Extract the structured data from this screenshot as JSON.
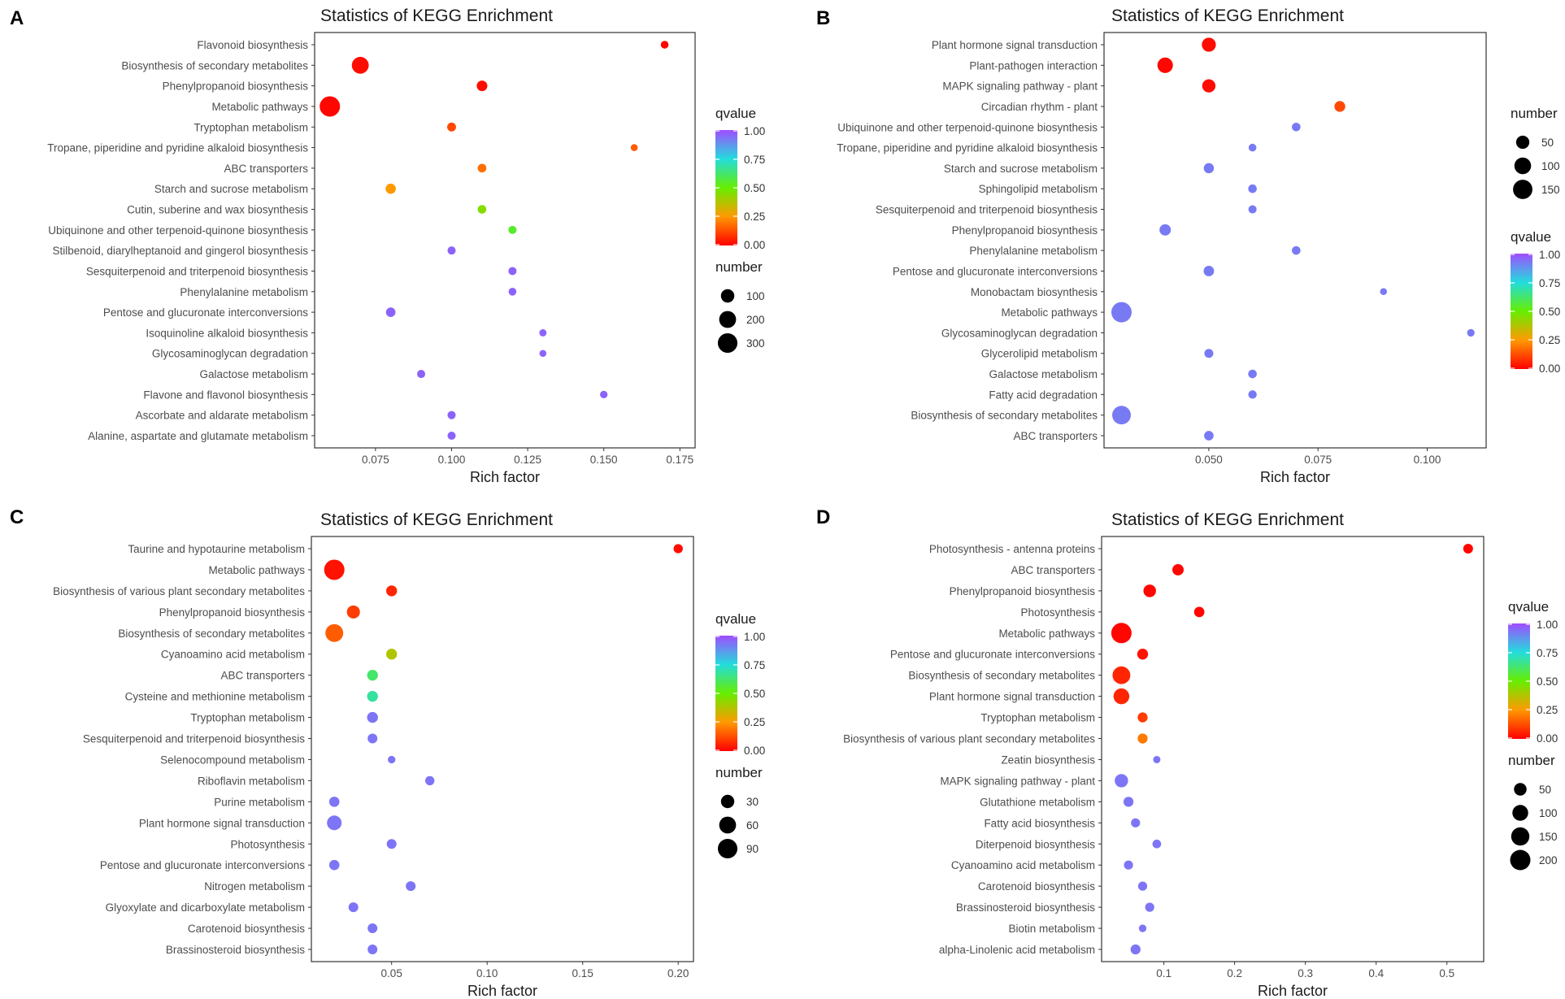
{
  "figure_title": "Statistics of KEGG Enrichment",
  "chart_data": [
    {
      "panel": "A",
      "type": "scatter",
      "title": "Statistics of KEGG Enrichment",
      "xlabel": "Rich factor",
      "xlim": [
        0.055,
        0.18
      ],
      "xticks": [
        0.075,
        0.1,
        0.125,
        0.15,
        0.175
      ],
      "xtick_labels": [
        "0.075",
        "0.100",
        "0.125",
        "0.150",
        "0.175"
      ],
      "categories": [
        "Flavonoid biosynthesis",
        "Biosynthesis of secondary metabolites",
        "Phenylpropanoid biosynthesis",
        "Metabolic pathways",
        "Tryptophan metabolism",
        "Tropane, piperidine and pyridine alkaloid biosynthesis",
        "ABC transporters",
        "Starch and sucrose metabolism",
        "Cutin, suberine and wax biosynthesis",
        "Ubiquinone and other terpenoid-quinone biosynthesis",
        "Stilbenoid, diarylheptanoid and gingerol biosynthesis",
        "Sesquiterpenoid and triterpenoid biosynthesis",
        "Phenylalanine metabolism",
        "Pentose and glucuronate interconversions",
        "Isoquinoline alkaloid biosynthesis",
        "Glycosaminoglycan degradation",
        "Galactose metabolism",
        "Flavone and flavonol biosynthesis",
        "Ascorbate and aldarate metabolism",
        "Alanine, aspartate and glutamate metabolism"
      ],
      "rich_factor": [
        0.17,
        0.07,
        0.11,
        0.06,
        0.1,
        0.16,
        0.11,
        0.08,
        0.11,
        0.12,
        0.1,
        0.12,
        0.12,
        0.08,
        0.13,
        0.13,
        0.09,
        0.15,
        0.1,
        0.1
      ],
      "number": [
        12,
        200,
        45,
        330,
        22,
        6,
        20,
        40,
        20,
        15,
        15,
        15,
        12,
        30,
        8,
        6,
        15,
        10,
        15,
        15
      ],
      "qvalue": [
        0.01,
        0.02,
        0.02,
        0.01,
        0.12,
        0.15,
        0.18,
        0.25,
        0.45,
        0.55,
        0.96,
        0.96,
        0.96,
        0.96,
        0.96,
        0.96,
        0.96,
        0.96,
        0.96,
        0.96
      ],
      "legends": [
        {
          "title": "qvalue",
          "kind": "color",
          "labels": [
            "1.00",
            "0.75",
            "0.50",
            "0.25",
            "0.00"
          ]
        },
        {
          "title": "number",
          "kind": "size",
          "labels": [
            "100",
            "200",
            "300"
          ],
          "values": [
            100,
            200,
            300
          ]
        }
      ]
    },
    {
      "panel": "B",
      "type": "scatter",
      "title": "Statistics of KEGG Enrichment",
      "xlabel": "Rich factor",
      "xlim": [
        0.026,
        0.1135
      ],
      "xticks": [
        0.05,
        0.075,
        0.1
      ],
      "xtick_labels": [
        "0.050",
        "0.075",
        "0.100"
      ],
      "categories": [
        "Plant hormone signal transduction",
        "Plant-pathogen interaction",
        "MAPK signaling pathway - plant",
        "Circadian rhythm - plant",
        "Ubiquinone and other terpenoid-quinone biosynthesis",
        "Tropane, piperidine and pyridine alkaloid biosynthesis",
        "Starch and sucrose metabolism",
        "Sphingolipid metabolism",
        "Sesquiterpenoid and triterpenoid biosynthesis",
        "Phenylpropanoid biosynthesis",
        "Phenylalanine metabolism",
        "Pentose and glucuronate interconversions",
        "Monobactam biosynthesis",
        "Metabolic pathways",
        "Glycosaminoglycan degradation",
        "Glycerolipid metabolism",
        "Galactose metabolism",
        "Fatty acid degradation",
        "Biosynthesis of secondary metabolites",
        "ABC transporters"
      ],
      "rich_factor": [
        0.05,
        0.04,
        0.05,
        0.08,
        0.07,
        0.06,
        0.05,
        0.06,
        0.06,
        0.04,
        0.07,
        0.05,
        0.09,
        0.03,
        0.11,
        0.05,
        0.06,
        0.06,
        0.03,
        0.05
      ],
      "number": [
        60,
        80,
        50,
        25,
        10,
        6,
        20,
        10,
        8,
        30,
        10,
        22,
        3,
        170,
        5,
        12,
        10,
        9,
        135,
        15
      ],
      "qvalue": [
        0.02,
        0.01,
        0.02,
        0.12,
        0.92,
        0.92,
        0.92,
        0.92,
        0.92,
        0.92,
        0.92,
        0.92,
        0.92,
        0.92,
        0.92,
        0.92,
        0.92,
        0.92,
        0.92,
        0.92
      ],
      "legends": [
        {
          "title": "number",
          "kind": "size",
          "labels": [
            "50",
            "100",
            "150"
          ],
          "values": [
            50,
            100,
            150
          ]
        },
        {
          "title": "qvalue",
          "kind": "color",
          "labels": [
            "1.00",
            "0.75",
            "0.50",
            "0.25",
            "0.00"
          ]
        }
      ]
    },
    {
      "panel": "C",
      "type": "scatter",
      "title": "Statistics of KEGG Enrichment",
      "xlabel": "Rich factor",
      "xlim": [
        0.008,
        0.208
      ],
      "xticks": [
        0.05,
        0.1,
        0.15,
        0.2
      ],
      "xtick_labels": [
        "0.05",
        "0.10",
        "0.15",
        "0.20"
      ],
      "categories": [
        "Taurine and hypotaurine metabolism",
        "Metabolic pathways",
        "Biosynthesis of various plant secondary metabolites",
        "Phenylpropanoid biosynthesis",
        "Biosynthesis of secondary metabolites",
        "Cyanoamino acid metabolism",
        "ABC transporters",
        "Cysteine and methionine metabolism",
        "Tryptophan metabolism",
        "Sesquiterpenoid and triterpenoid biosynthesis",
        "Selenocompound metabolism",
        "Riboflavin metabolism",
        "Purine metabolism",
        "Plant hormone signal transduction",
        "Photosynthesis",
        "Pentose and glucuronate interconversions",
        "Nitrogen metabolism",
        "Glyoxylate and dicarboxylate metabolism",
        "Carotenoid biosynthesis",
        "Brassinosteroid biosynthesis"
      ],
      "rich_factor": [
        0.2,
        0.02,
        0.05,
        0.03,
        0.02,
        0.05,
        0.04,
        0.04,
        0.04,
        0.04,
        0.05,
        0.07,
        0.02,
        0.02,
        0.05,
        0.02,
        0.06,
        0.03,
        0.04,
        0.04
      ],
      "number": [
        8,
        100,
        15,
        28,
        70,
        15,
        15,
        15,
        15,
        10,
        3,
        8,
        12,
        40,
        10,
        12,
        10,
        10,
        10,
        10
      ],
      "qvalue": [
        0.02,
        0.03,
        0.06,
        0.1,
        0.15,
        0.38,
        0.62,
        0.68,
        0.93,
        0.93,
        0.93,
        0.93,
        0.93,
        0.93,
        0.93,
        0.93,
        0.93,
        0.93,
        0.93,
        0.93
      ],
      "legends": [
        {
          "title": "qvalue",
          "kind": "color",
          "labels": [
            "1.00",
            "0.75",
            "0.50",
            "0.25",
            "0.00"
          ]
        },
        {
          "title": "number",
          "kind": "size",
          "labels": [
            "30",
            "60",
            "90"
          ],
          "values": [
            30,
            60,
            90
          ]
        }
      ]
    },
    {
      "panel": "D",
      "type": "scatter",
      "title": "Statistics of KEGG Enrichment",
      "xlabel": "Rich factor",
      "xlim": [
        0.012,
        0.552
      ],
      "xticks": [
        0.1,
        0.2,
        0.3,
        0.4,
        0.5
      ],
      "xtick_labels": [
        "0.1",
        "0.2",
        "0.3",
        "0.4",
        "0.5"
      ],
      "categories": [
        "Photosynthesis - antenna proteins",
        "ABC transporters",
        "Phenylpropanoid biosynthesis",
        "Photosynthesis",
        "Metabolic pathways",
        "Pentose and glucuronate interconversions",
        "Biosynthesis of secondary metabolites",
        "Plant hormone signal transduction",
        "Tryptophan metabolism",
        "Biosynthesis of various plant secondary metabolites",
        "Zeatin biosynthesis",
        "MAPK signaling pathway - plant",
        "Glutathione metabolism",
        "Fatty acid biosynthesis",
        "Diterpenoid biosynthesis",
        "Cyanoamino acid metabolism",
        "Carotenoid biosynthesis",
        "Brassinosteroid biosynthesis",
        "Biotin metabolism",
        "alpha-Linolenic acid metabolism"
      ],
      "rich_factor": [
        0.53,
        0.12,
        0.08,
        0.15,
        0.04,
        0.07,
        0.04,
        0.04,
        0.07,
        0.07,
        0.09,
        0.04,
        0.05,
        0.06,
        0.09,
        0.05,
        0.07,
        0.08,
        0.07,
        0.06
      ],
      "number": [
        20,
        35,
        50,
        25,
        200,
        30,
        140,
        100,
        22,
        22,
        5,
        60,
        22,
        15,
        12,
        15,
        15,
        15,
        6,
        22
      ],
      "qvalue": [
        0.01,
        0.01,
        0.01,
        0.01,
        0.01,
        0.03,
        0.06,
        0.06,
        0.1,
        0.2,
        0.93,
        0.93,
        0.93,
        0.93,
        0.93,
        0.93,
        0.93,
        0.93,
        0.93,
        0.93
      ],
      "legends": [
        {
          "title": "qvalue",
          "kind": "color",
          "labels": [
            "1.00",
            "0.75",
            "0.50",
            "0.25",
            "0.00"
          ]
        },
        {
          "title": "number",
          "kind": "size",
          "labels": [
            "50",
            "100",
            "150",
            "200"
          ],
          "values": [
            50,
            100,
            150,
            200
          ]
        }
      ]
    }
  ],
  "colors": {
    "q_low": "#ff0000",
    "q_025": "#ff9900",
    "q_050": "#66ee00",
    "q_075": "#22dddd",
    "q_high": "#a04cff",
    "plot_border": "#333333",
    "text": "#4d4d4d"
  }
}
